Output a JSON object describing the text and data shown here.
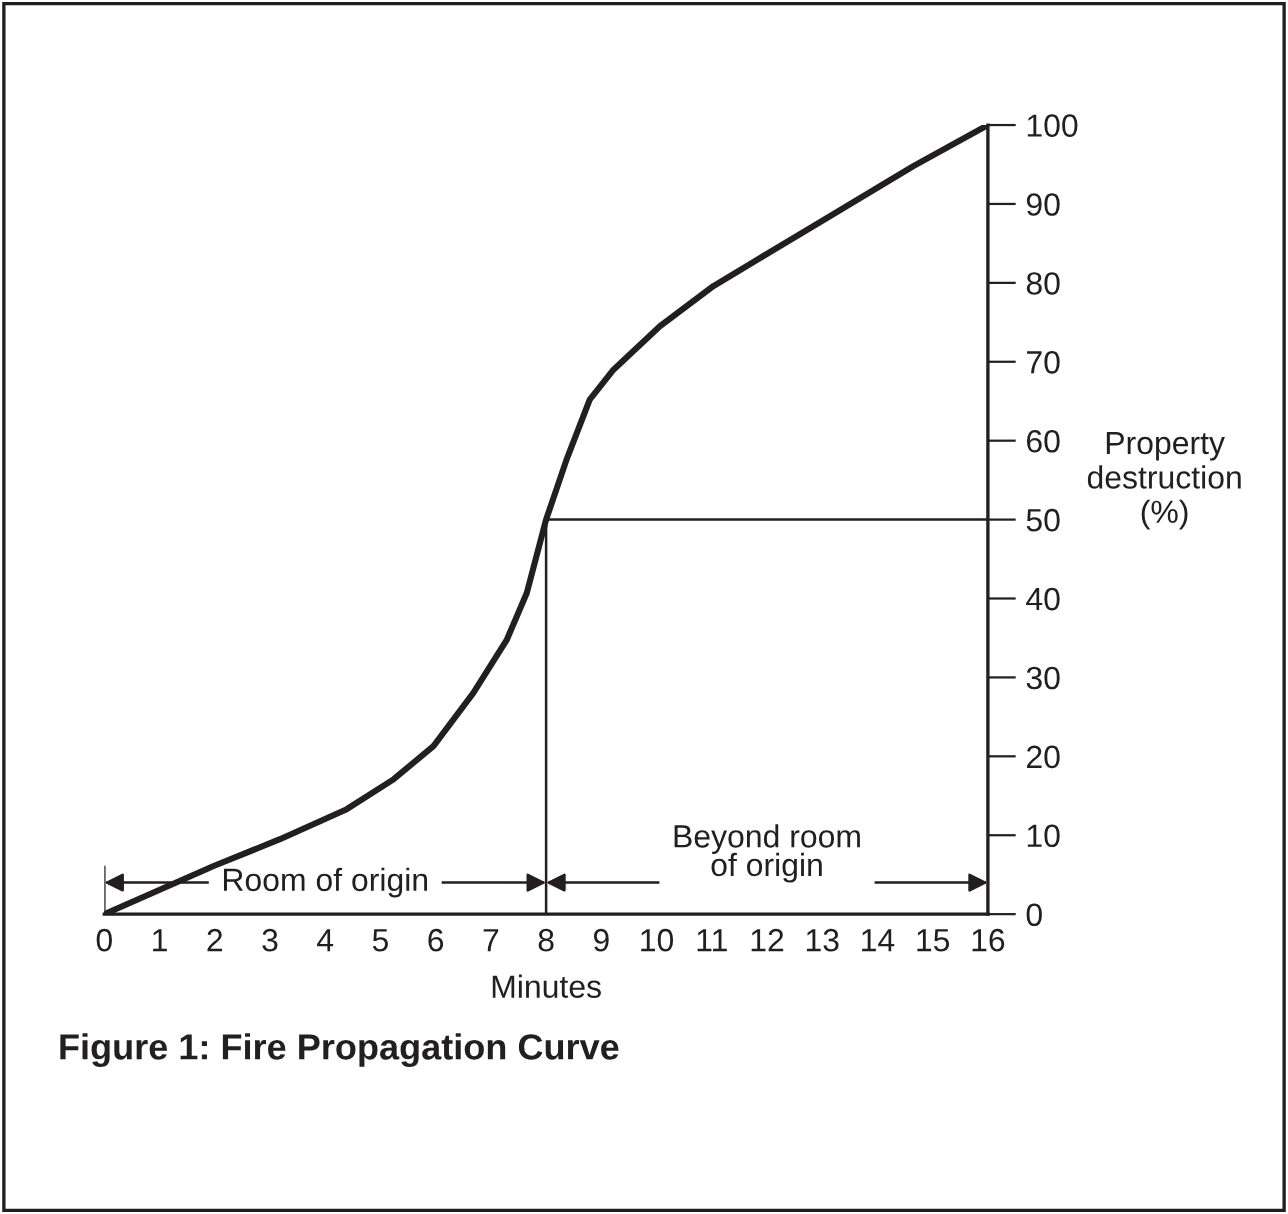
{
  "chart_data": {
    "type": "line",
    "title": "Figure 1: Fire Propagation Curve",
    "xlabel": "Minutes",
    "ylabel": "Property\ndestruction\n(%)",
    "x": [
      0,
      1.98,
      3.18,
      4.39,
      5.24,
      5.96,
      6.68,
      7.29,
      7.65,
      8,
      8.37,
      8.79,
      9.22,
      10.06,
      11.03,
      12.84,
      14.65,
      16
    ],
    "series": [
      {
        "color": "#231f20",
        "values": [
          0,
          6.1,
          9.5,
          13.3,
          17.1,
          21.3,
          28.0,
          34.8,
          40.7,
          50,
          57.6,
          65.2,
          69.0,
          74.5,
          79.6,
          87.2,
          94.8,
          100
        ]
      }
    ],
    "xlim": [
      0,
      16
    ],
    "ylim": [
      0,
      100
    ],
    "xticks": [
      0,
      1,
      2,
      3,
      4,
      5,
      6,
      7,
      8,
      9,
      10,
      11,
      12,
      13,
      14,
      15,
      16
    ],
    "yticks": [
      0,
      10,
      20,
      30,
      40,
      50,
      60,
      70,
      80,
      90,
      100
    ],
    "ref_lines": [
      {
        "axis": "x",
        "value": 8,
        "color": "#231f20"
      },
      {
        "axis": "y",
        "value": 50,
        "color": "#231f20"
      }
    ],
    "annotations": [
      "Room of origin",
      "Beyond room\nof origin"
    ],
    "grid": false,
    "legend": false,
    "marker": "none",
    "line_style": "solid"
  }
}
